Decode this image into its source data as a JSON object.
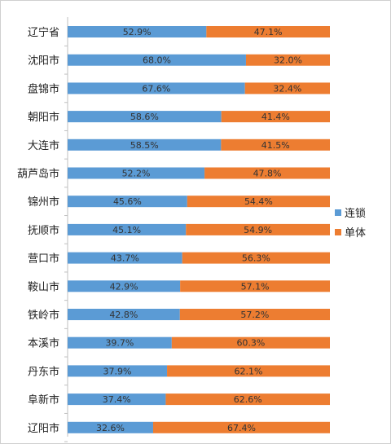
{
  "chart_data": {
    "type": "bar",
    "orientation": "horizontal",
    "stacked": "percent",
    "categories": [
      "辽宁省",
      "沈阳市",
      "盘锦市",
      "朝阳市",
      "大连市",
      "葫芦岛市",
      "锦州市",
      "抚顺市",
      "营口市",
      "鞍山市",
      "铁岭市",
      "本溪市",
      "丹东市",
      "阜新市",
      "辽阳市"
    ],
    "series": [
      {
        "name": "连锁",
        "color": "#5b9bd5",
        "values": [
          52.9,
          68.0,
          67.6,
          58.6,
          58.5,
          52.2,
          45.6,
          45.1,
          43.7,
          42.9,
          42.8,
          39.7,
          37.9,
          37.4,
          32.6
        ],
        "labels": [
          "52.9%",
          "68.0%",
          "67.6%",
          "58.6%",
          "58.5%",
          "52.2%",
          "45.6%",
          "45.1%",
          "43.7%",
          "42.9%",
          "42.8%",
          "39.7%",
          "37.9%",
          "37.4%",
          "32.6%"
        ]
      },
      {
        "name": "单体",
        "color": "#ed7d31",
        "values": [
          47.1,
          32.0,
          32.4,
          41.4,
          41.5,
          47.8,
          54.4,
          54.9,
          56.3,
          57.1,
          57.2,
          60.3,
          62.1,
          62.6,
          67.4
        ],
        "labels": [
          "47.1%",
          "32.0%",
          "32.4%",
          "41.4%",
          "41.5%",
          "47.8%",
          "54.4%",
          "54.9%",
          "56.3%",
          "57.1%",
          "57.2%",
          "60.3%",
          "62.1%",
          "62.6%",
          "67.4%"
        ]
      }
    ],
    "xlim": [
      0,
      100
    ],
    "grid": false,
    "legend": "right"
  }
}
